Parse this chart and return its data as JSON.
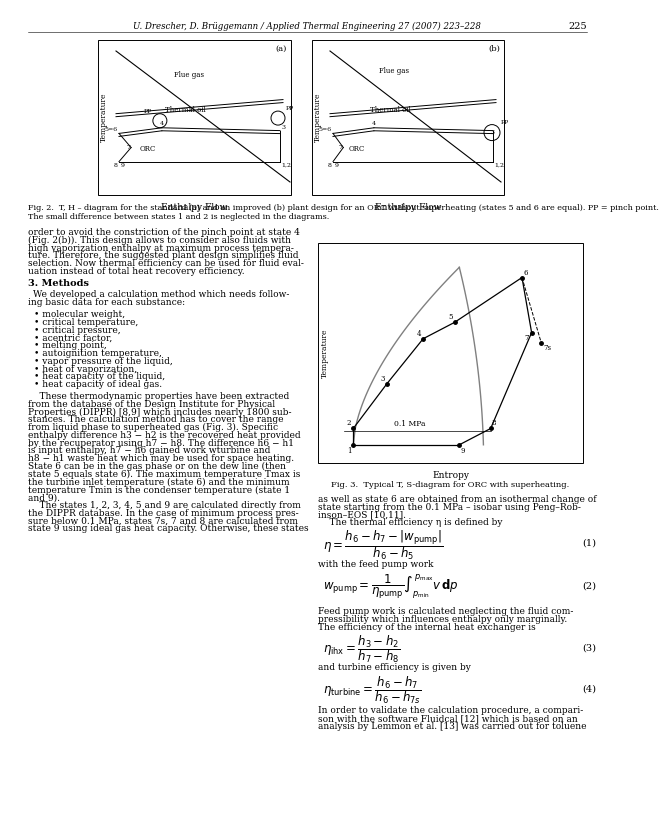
{
  "page_header": "U. Drescher, D. Brüggemann / Applied Thermal Engineering 27 (2007) 223–228",
  "page_number": "225",
  "fig2_caption_line1": "Fig. 2.  T, H – diagram for the standard (a) and an improved (b) plant design for an ORC without superheating (states 5 and 6 are equal). PP = pinch point.",
  "fig2_caption_line2": "The small difference between states 1 and 2 is neglected in the diagrams.",
  "fig3_caption": "Fig. 3.  Typical T, S-diagram for ORC with superheating.",
  "left_col_lines": [
    {
      "text": "order to avoid the constriction of the pinch point at state 4",
      "indent": 0,
      "bold": false
    },
    {
      "text": "(Fig. 2(b)). This design allows to consider also fluids with",
      "indent": 0,
      "bold": false
    },
    {
      "text": "high vaporization enthalpy at maximum process tempera-",
      "indent": 0,
      "bold": false
    },
    {
      "text": "ture. Therefore, the suggested plant design simplifies fluid",
      "indent": 0,
      "bold": false
    },
    {
      "text": "selection. Now thermal efficiency can be used for fluid eval-",
      "indent": 0,
      "bold": false
    },
    {
      "text": "uation instead of total heat recovery efficiency.",
      "indent": 0,
      "bold": false
    },
    {
      "text": "",
      "indent": 0,
      "bold": false
    },
    {
      "text": "3. Methods",
      "indent": 0,
      "bold": true
    },
    {
      "text": "",
      "indent": 0,
      "bold": false
    },
    {
      "text": "We developed a calculation method which needs follow-",
      "indent": 5,
      "bold": false
    },
    {
      "text": "ing basic data for each substance:",
      "indent": 0,
      "bold": false
    },
    {
      "text": "",
      "indent": 0,
      "bold": false
    },
    {
      "text": "• molecular weight,",
      "indent": 6,
      "bold": false
    },
    {
      "text": "• critical temperature,",
      "indent": 6,
      "bold": false
    },
    {
      "text": "• critical pressure,",
      "indent": 6,
      "bold": false
    },
    {
      "text": "• acentric factor,",
      "indent": 6,
      "bold": false
    },
    {
      "text": "• melting point,",
      "indent": 6,
      "bold": false
    },
    {
      "text": "• autoignition temperature,",
      "indent": 6,
      "bold": false
    },
    {
      "text": "• vapor pressure of the liquid,",
      "indent": 6,
      "bold": false
    },
    {
      "text": "• heat of vaporization,",
      "indent": 6,
      "bold": false
    },
    {
      "text": "• heat capacity of the liquid,",
      "indent": 6,
      "bold": false
    },
    {
      "text": "• heat capacity of ideal gas.",
      "indent": 6,
      "bold": false
    },
    {
      "text": "",
      "indent": 0,
      "bold": false
    },
    {
      "text": "    These thermodynamic properties have been extracted",
      "indent": 0,
      "bold": false
    },
    {
      "text": "from the database of the Design Institute for Physical",
      "indent": 0,
      "bold": false
    },
    {
      "text": "Properties (DIPPR) [8,9] which includes nearly 1800 sub-",
      "indent": 0,
      "bold": false
    },
    {
      "text": "stances. The calculation method has to cover the range",
      "indent": 0,
      "bold": false
    },
    {
      "text": "from liquid phase to superheated gas (Fig. 3). Specific",
      "indent": 0,
      "bold": false
    },
    {
      "text": "enthalpy difference h3 − h2 is the recovered heat provided",
      "indent": 0,
      "bold": false
    },
    {
      "text": "by the recuperator using h7 − h8. The difference h6 − h1",
      "indent": 0,
      "bold": false
    },
    {
      "text": "is input enthalpy, h7 − h6 gained work wturbine and",
      "indent": 0,
      "bold": false
    },
    {
      "text": "h8 − h1 waste heat which may be used for space heating.",
      "indent": 0,
      "bold": false
    },
    {
      "text": "State 6 can be in the gas phase or on the dew line (then",
      "indent": 0,
      "bold": false
    },
    {
      "text": "state 5 equals state 6). The maximum temperature Tmax is",
      "indent": 0,
      "bold": false
    },
    {
      "text": "the turbine inlet temperature (state 6) and the minimum",
      "indent": 0,
      "bold": false
    },
    {
      "text": "temperature Tmin is the condenser temperature (state 1",
      "indent": 0,
      "bold": false
    },
    {
      "text": "and 9).",
      "indent": 0,
      "bold": false
    },
    {
      "text": "    The states 1, 2, 3, 4, 5 and 9 are calculated directly from",
      "indent": 0,
      "bold": false
    },
    {
      "text": "the DIPPR database. In the case of minimum process pres-",
      "indent": 0,
      "bold": false
    },
    {
      "text": "sure below 0.1 MPa, states 7s, 7 and 8 are calculated from",
      "indent": 0,
      "bold": false
    },
    {
      "text": "state 9 using ideal gas heat capacity. Otherwise, these states",
      "indent": 0,
      "bold": false
    }
  ],
  "right_col_lines": [
    "as well as state 6 are obtained from an isothermal change of",
    "state starting from the 0.1 MPa – isobar using Peng–Rob-",
    "inson–EOS [10,11].",
    "    The thermal efficiency η is defined by"
  ],
  "right_col_after_eq2": [
    "Feed pump work is calculated neglecting the fluid com-",
    "pressibility which influences enthalpy only marginally.",
    "The efficiency of the internal heat exchanger is"
  ],
  "right_col_after_eq3": [
    "and turbine efficiency is given by"
  ],
  "right_col_after_eq4": [
    "In order to validate the calculation procedure, a compari-",
    "son with the software Fluidcal [12] which is based on an",
    "analysis by Lemmon et al. [13] was carried out for toluene"
  ],
  "background_color": "#ffffff"
}
